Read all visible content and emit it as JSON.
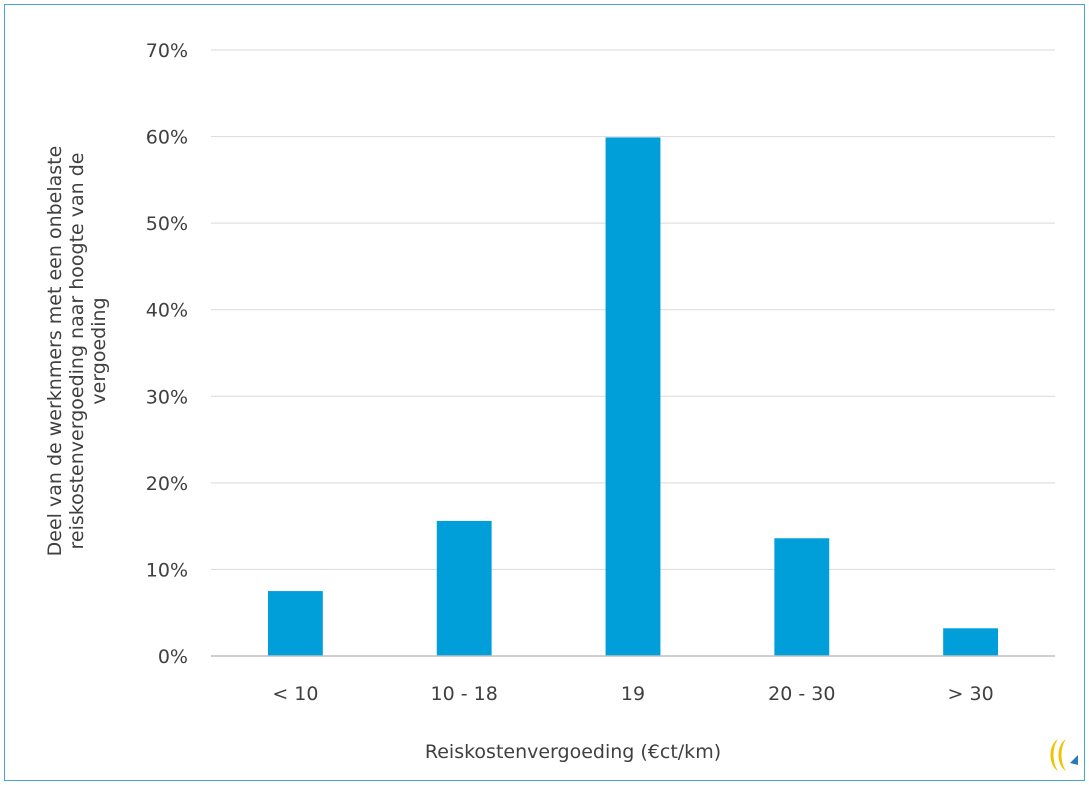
{
  "chart_data": {
    "type": "bar",
    "title": "",
    "xlabel": "Reiskostenvergoeding (€ct/km)",
    "ylabel": "Deel van de werknmers met een onbelaste reiskostenvergoeding naar hoogte van de vergoeding",
    "ylabel_lines": [
      "Deel van de werknmers met een onbelaste",
      "reiskostenvergoeding naar hoogte van de",
      "vergoeding"
    ],
    "categories": [
      "< 10",
      "10 - 18",
      "19",
      "20 - 30",
      "> 30"
    ],
    "values": [
      7.5,
      15.6,
      59.9,
      13.6,
      3.2
    ],
    "ylim": [
      0,
      70
    ],
    "yticks": [
      0,
      10,
      20,
      30,
      40,
      50,
      60,
      70
    ],
    "ytick_labels": [
      "0%",
      "10%",
      "20%",
      "30%",
      "40%",
      "50%",
      "60%",
      "70%"
    ],
    "grid": true,
    "legend": "none",
    "bar_color": "#009fda",
    "grid_color": "#d9d9d9"
  },
  "logo": {
    "name": "logo-icon",
    "colors": [
      "#f2c200",
      "#2a7ab8"
    ]
  }
}
